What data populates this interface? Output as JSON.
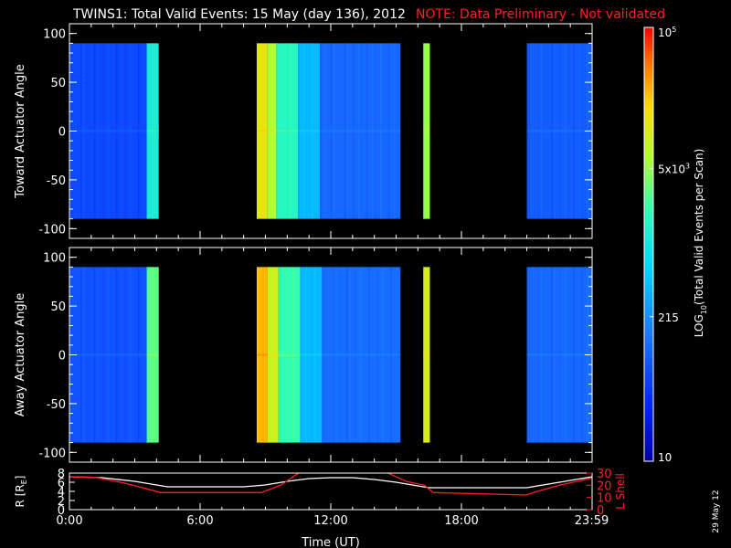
{
  "header": {
    "title": "TWINS1: Total Valid Events: 15 May (day 136), 2012",
    "note": "NOTE: Data Preliminary - Not validated"
  },
  "colors": {
    "background": "#000000",
    "axis": "#ffffff",
    "note": "#ff2020",
    "radius_line": "#ffffff",
    "lshell_line": "#ff2020"
  },
  "colorbar": {
    "label": "LOG10(Total Valid Events per Scan)",
    "label_main": "LOG",
    "label_sub": "10",
    "label_rest": "(Total Valid Events per Scan)",
    "ticks": [
      {
        "value": 10,
        "text": "10"
      },
      {
        "value": 215,
        "text": "215"
      },
      {
        "value": 5000,
        "text": "5x10",
        "sup": "3"
      },
      {
        "value": 100000,
        "text": "10",
        "sup": "5"
      }
    ],
    "range": [
      10,
      100000
    ],
    "scale": "log"
  },
  "date_stamp": "29 May 12",
  "chart_data": [
    {
      "type": "heatmap",
      "ylabel": "Toward Actuator Angle",
      "ylim": [
        -110,
        110
      ],
      "yticks": [
        100,
        50,
        0,
        -50,
        -100
      ],
      "data_range": [
        -90,
        90
      ],
      "x_range_hours": [
        0,
        24
      ],
      "segments": [
        {
          "start": 0.0,
          "end": 3.55,
          "level": 0.2
        },
        {
          "start": 3.55,
          "end": 4.1,
          "level": 0.52
        },
        {
          "start": 8.6,
          "end": 9.1,
          "level": 0.78
        },
        {
          "start": 9.1,
          "end": 9.5,
          "level": 0.7
        },
        {
          "start": 9.5,
          "end": 10.5,
          "level": 0.55
        },
        {
          "start": 10.5,
          "end": 11.5,
          "level": 0.4
        },
        {
          "start": 11.5,
          "end": 15.2,
          "level": 0.26
        },
        {
          "start": 16.25,
          "end": 16.55,
          "level": 0.68
        },
        {
          "start": 21.0,
          "end": 24.0,
          "level": 0.24
        }
      ]
    },
    {
      "type": "heatmap",
      "ylabel": "Away Actuator Angle",
      "ylim": [
        -110,
        110
      ],
      "yticks": [
        100,
        50,
        0,
        -50,
        -100
      ],
      "data_range": [
        -90,
        90
      ],
      "x_range_hours": [
        0,
        24
      ],
      "segments": [
        {
          "start": 0.0,
          "end": 3.55,
          "level": 0.22
        },
        {
          "start": 3.55,
          "end": 4.1,
          "level": 0.62
        },
        {
          "start": 8.6,
          "end": 9.1,
          "level": 0.85
        },
        {
          "start": 9.1,
          "end": 9.6,
          "level": 0.74
        },
        {
          "start": 9.6,
          "end": 10.6,
          "level": 0.58
        },
        {
          "start": 10.6,
          "end": 11.6,
          "level": 0.4
        },
        {
          "start": 11.6,
          "end": 15.2,
          "level": 0.27
        },
        {
          "start": 16.25,
          "end": 16.55,
          "level": 0.76
        },
        {
          "start": 21.0,
          "end": 24.0,
          "level": 0.26
        }
      ]
    },
    {
      "type": "line",
      "xlabel": "Time (UT)",
      "ylabel": "R [R",
      "ylabel_sub": "E",
      "ylabel_end": "]",
      "ylabel_right": "L Shell",
      "ylim": [
        0,
        8
      ],
      "yticks": [
        0,
        2,
        4,
        6,
        8
      ],
      "ylim_right": [
        0,
        30
      ],
      "yticks_right": [
        0,
        10,
        20,
        30
      ],
      "xticks": [
        {
          "value": 0,
          "text": "0:00"
        },
        {
          "value": 6,
          "text": "6:00"
        },
        {
          "value": 12,
          "text": "12:00"
        },
        {
          "value": 18,
          "text": "18:00"
        },
        {
          "value": 23.98,
          "text": "23:59"
        }
      ],
      "series": [
        {
          "axis": "left",
          "x": [
            0,
            1.5,
            3,
            4.5,
            6,
            8,
            9,
            10,
            11,
            12,
            13,
            14,
            15,
            16,
            16.5,
            17.5,
            21,
            22.5,
            24
          ],
          "values": [
            7.2,
            7.0,
            6.2,
            5.0,
            5.0,
            5.0,
            5.4,
            6.2,
            6.8,
            7.0,
            7.0,
            6.6,
            6.0,
            5.2,
            4.8,
            4.8,
            4.8,
            6.0,
            7.2
          ]
        },
        {
          "axis": "right",
          "x": [
            0,
            1.2,
            2.5,
            4.2,
            8.8,
            9.7,
            10.6,
            14.5,
            15.5,
            16.3,
            16.7,
            21,
            21.3,
            22.5,
            24
          ],
          "values": [
            27,
            26.5,
            22,
            14,
            14,
            20,
            31,
            31,
            23,
            20,
            14,
            12,
            14,
            20,
            26
          ]
        }
      ]
    }
  ]
}
